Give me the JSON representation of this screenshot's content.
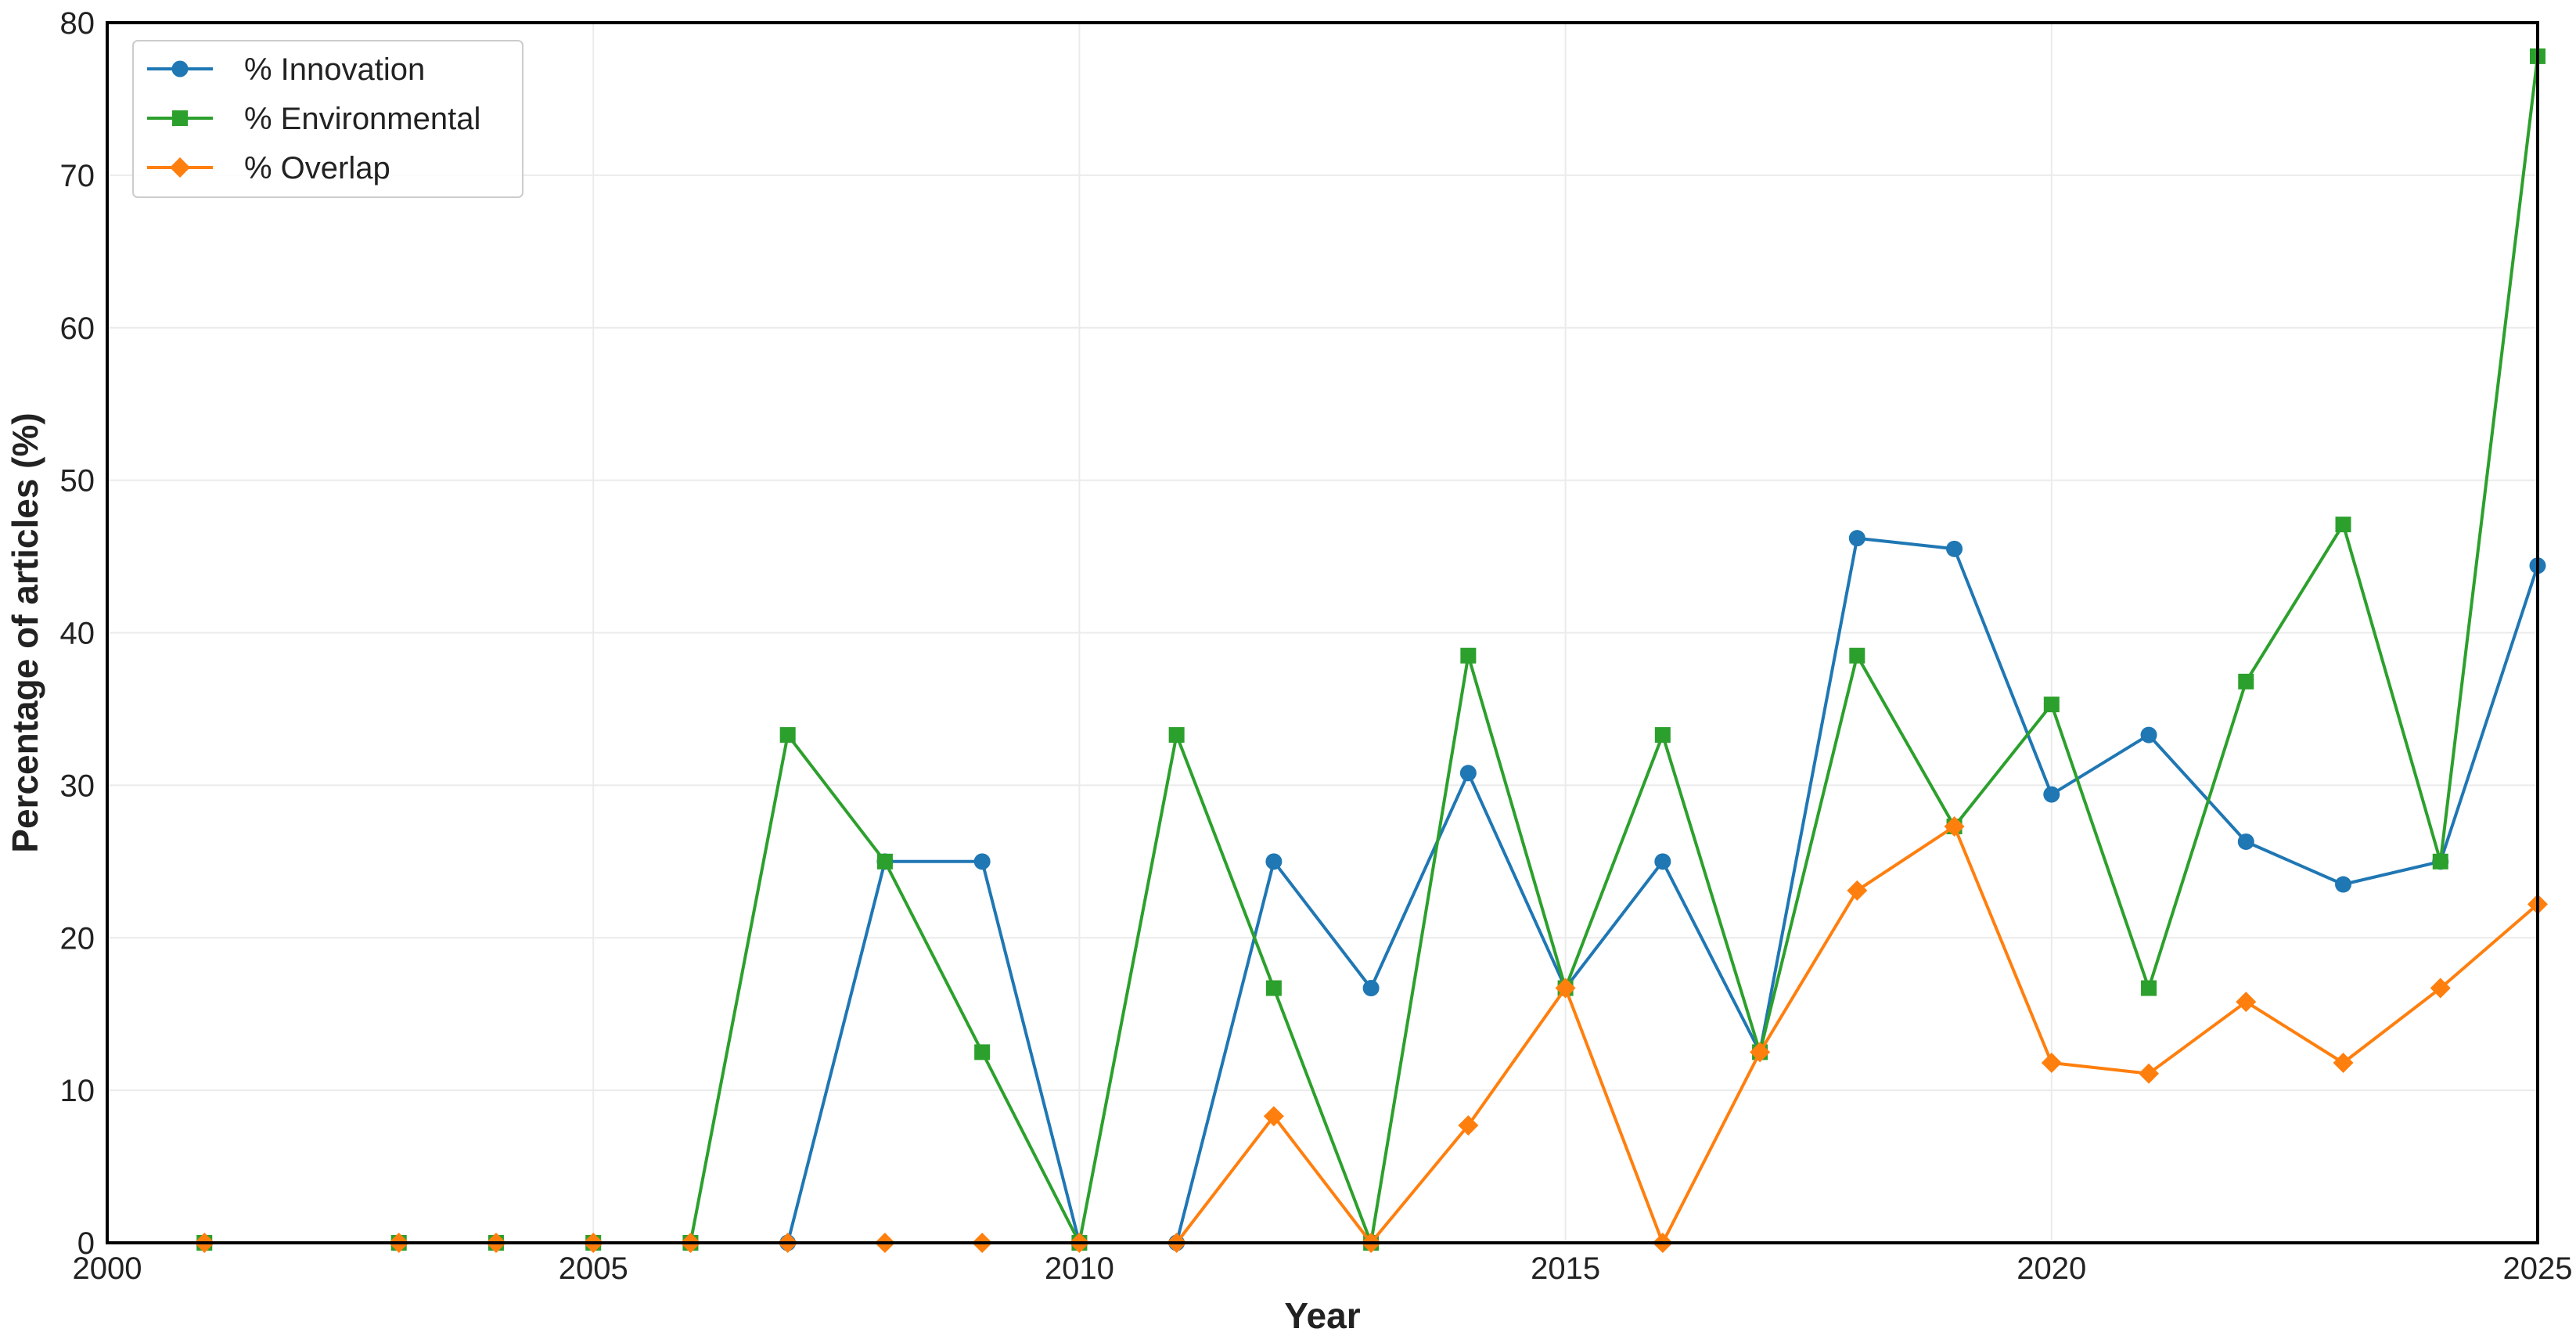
{
  "chart_data": {
    "type": "line",
    "title": "",
    "xlabel": "Year",
    "ylabel": "Percentage of articles (%)",
    "xlim": [
      2000,
      2025
    ],
    "ylim": [
      0,
      80
    ],
    "xticks": [
      2000,
      2005,
      2010,
      2015,
      2020,
      2025
    ],
    "yticks": [
      0,
      10,
      20,
      30,
      40,
      50,
      60,
      70,
      80
    ],
    "grid": true,
    "legend_position": "top-left",
    "x": [
      2001,
      2003,
      2004,
      2005,
      2006,
      2007,
      2008,
      2009,
      2010,
      2011,
      2012,
      2013,
      2014,
      2015,
      2016,
      2017,
      2018,
      2019,
      2020,
      2021,
      2022,
      2023,
      2024,
      2025
    ],
    "series": [
      {
        "name": "% Innovation",
        "color": "#1f77b4",
        "marker": "circle",
        "values": [
          0,
          0,
          0,
          0,
          0,
          0,
          25.0,
          25.0,
          0,
          0,
          25.0,
          16.7,
          30.8,
          16.7,
          25.0,
          12.5,
          46.2,
          45.5,
          29.4,
          33.3,
          26.3,
          23.5,
          25.0,
          44.4
        ]
      },
      {
        "name": "% Environmental",
        "color": "#2ca02c",
        "marker": "square",
        "values": [
          0,
          0,
          0,
          0,
          0,
          33.3,
          25.0,
          12.5,
          0,
          33.3,
          16.7,
          0,
          38.5,
          16.7,
          33.3,
          12.5,
          38.5,
          27.3,
          35.3,
          16.7,
          36.8,
          47.1,
          25.0,
          77.8
        ]
      },
      {
        "name": "% Overlap",
        "color": "#ff7f0e",
        "marker": "diamond",
        "values": [
          0,
          0,
          0,
          0,
          0,
          0,
          0,
          0,
          0,
          0,
          8.3,
          0,
          7.7,
          16.7,
          0,
          12.5,
          23.1,
          27.3,
          11.8,
          11.1,
          15.8,
          11.8,
          16.7,
          22.2
        ]
      }
    ]
  }
}
